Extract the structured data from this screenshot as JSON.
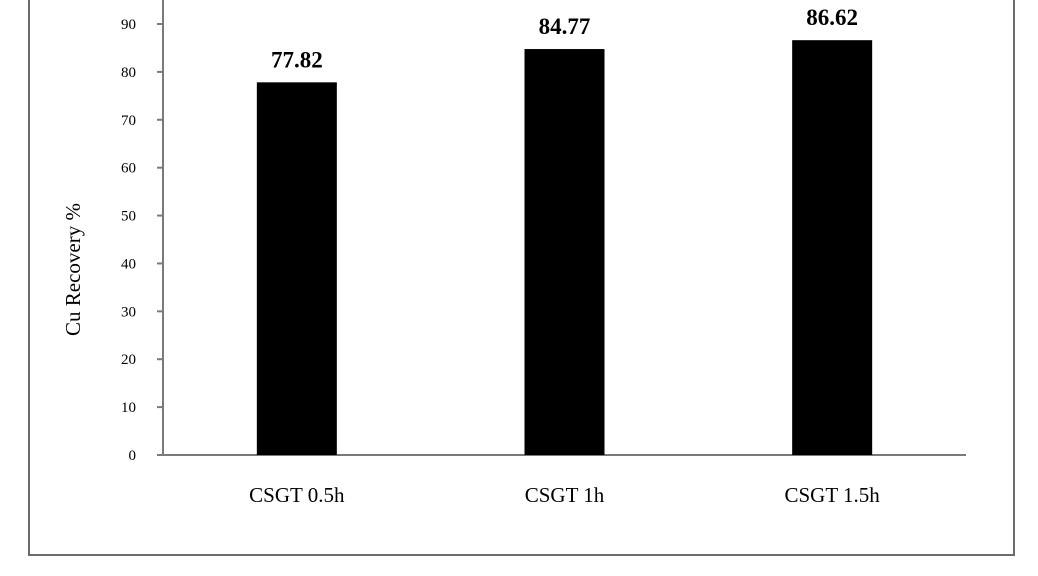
{
  "chart_data": {
    "type": "bar",
    "categories": [
      "CSGT 0.5h",
      "CSGT 1h",
      "CSGT 1.5h"
    ],
    "values": [
      77.82,
      84.77,
      86.62
    ],
    "data_labels": [
      "77.82",
      "84.77",
      "86.62"
    ],
    "ylabel": "Cu Recovery %",
    "xlabel": "",
    "ylim": [
      0,
      90
    ],
    "yticks": [
      0,
      10,
      20,
      30,
      40,
      50,
      60,
      70,
      80,
      90
    ],
    "grid": false,
    "legend": "none",
    "bar_color": "#000000"
  }
}
